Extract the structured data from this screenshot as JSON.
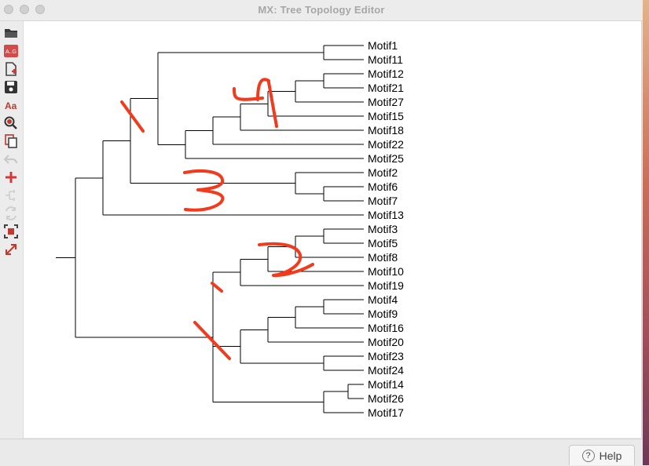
{
  "window": {
    "title": "MX: Tree Topology Editor"
  },
  "toolbar": {
    "buttons": [
      {
        "name": "open-file-icon",
        "label": ""
      },
      {
        "name": "alignment-icon",
        "label": "A..G"
      },
      {
        "name": "new-document-icon",
        "label": ""
      },
      {
        "name": "save-icon",
        "label": ""
      },
      {
        "name": "font-icon",
        "label": "Aa"
      },
      {
        "name": "zoom-icon",
        "label": ""
      },
      {
        "name": "copy-icon",
        "label": ""
      },
      {
        "name": "undo-icon",
        "label": ""
      },
      {
        "name": "add-icon",
        "label": ""
      },
      {
        "name": "reroot-icon",
        "label": ""
      },
      {
        "name": "swap-icon",
        "label": ""
      },
      {
        "name": "fit-icon",
        "label": ""
      },
      {
        "name": "expand-icon",
        "label": ""
      }
    ]
  },
  "tree": {
    "leaves": [
      "Motif1",
      "Motif11",
      "Motif12",
      "Motif21",
      "Motif27",
      "Motif15",
      "Motif18",
      "Motif22",
      "Motif25",
      "Motif2",
      "Motif6",
      "Motif7",
      "Motif13",
      "Motif3",
      "Motif5",
      "Motif8",
      "Motif10",
      "Motif19",
      "Motif4",
      "Motif9",
      "Motif16",
      "Motif20",
      "Motif23",
      "Motif24",
      "Motif14",
      "Motif26",
      "Motif17"
    ],
    "annotations": [
      "1",
      "4",
      "3",
      "2",
      "1",
      "1"
    ],
    "annotation_color": "#f23a1c"
  },
  "footer": {
    "help_label": "Help",
    "help_icon": "?"
  }
}
